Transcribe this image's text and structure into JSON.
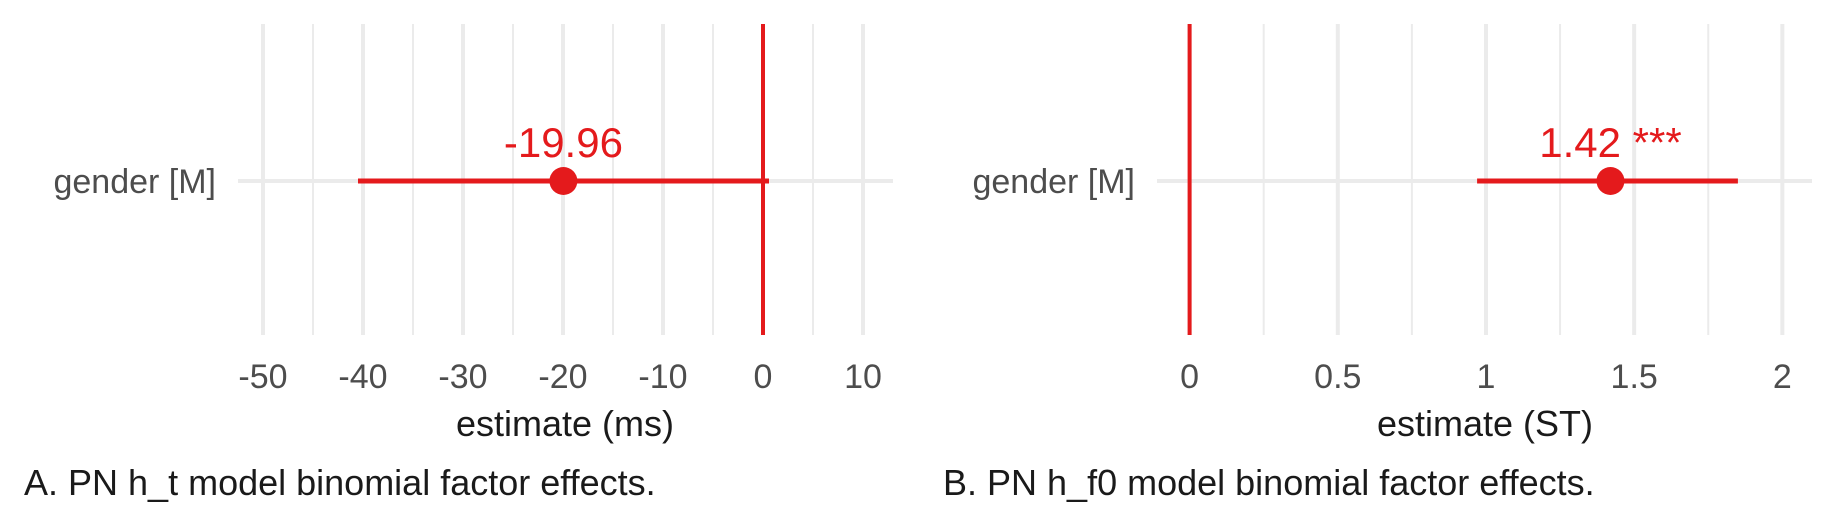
{
  "chart_data": [
    {
      "type": "scatter",
      "categories": [
        "gender [M]"
      ],
      "points": [
        {
          "y": "gender [M]",
          "estimate": -19.96,
          "ci_low": -40.5,
          "ci_high": 0.6
        }
      ],
      "estimate_label": "-19.96",
      "reference_line": 0,
      "xlabel": "estimate (ms)",
      "xlim": [
        -52.5,
        13
      ],
      "xticks": [
        -50,
        -40,
        -30,
        -20,
        -10,
        0,
        10
      ],
      "xtick_labels": [
        "-50",
        "-40",
        "-30",
        "-20",
        "-10",
        "0",
        "10"
      ],
      "minor_ticks": [
        -45,
        -35,
        -25,
        -15,
        -5,
        5
      ],
      "caption": "A. PN h_t model binomial factor effects.",
      "grid": true,
      "colors": {
        "effect": "#e41a1c",
        "grid": "#ebebeb"
      }
    },
    {
      "type": "scatter",
      "categories": [
        "gender [M]"
      ],
      "points": [
        {
          "y": "gender [M]",
          "estimate": 1.42,
          "ci_low": 0.97,
          "ci_high": 1.85
        }
      ],
      "estimate_label": "1.42 ***",
      "reference_line": 0,
      "xlabel": "estimate (ST)",
      "xlim": [
        -0.11,
        2.1
      ],
      "xticks": [
        0,
        0.5,
        1,
        1.5,
        2
      ],
      "xtick_labels": [
        "0",
        "0.5",
        "1",
        "1.5",
        "2"
      ],
      "minor_ticks": [
        0.25,
        0.75,
        1.25,
        1.75
      ],
      "caption": "B. PN h_f0 model binomial factor effects.",
      "grid": true,
      "colors": {
        "effect": "#e41a1c",
        "grid": "#ebebeb"
      }
    }
  ]
}
